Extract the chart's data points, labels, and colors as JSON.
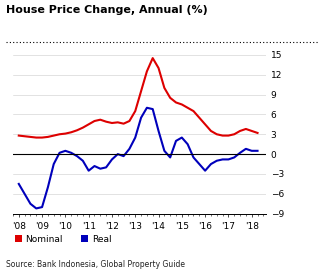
{
  "title": "House Price Change, Annual (%)",
  "source": "Source: Bank Indonesia, Global Property Guide",
  "legend_nominal": "Nominal",
  "legend_real": "Real",
  "nominal_color": "#dd0000",
  "real_color": "#0000bb",
  "background_color": "#ffffff",
  "ylim": [
    -9,
    15
  ],
  "yticks": [
    -9,
    -6,
    -3,
    0,
    3,
    6,
    9,
    12,
    15
  ],
  "x_labels": [
    "'08",
    "'09",
    "'10",
    "'11",
    "'12",
    "'13",
    "'14",
    "'15",
    "'16",
    "'17",
    "'18"
  ],
  "x_tick_positions": [
    2008,
    2009,
    2010,
    2011,
    2012,
    2013,
    2014,
    2015,
    2016,
    2017,
    2018
  ],
  "x_values": [
    2008.0,
    2008.25,
    2008.5,
    2008.75,
    2009.0,
    2009.25,
    2009.5,
    2009.75,
    2010.0,
    2010.25,
    2010.5,
    2010.75,
    2011.0,
    2011.25,
    2011.5,
    2011.75,
    2012.0,
    2012.25,
    2012.5,
    2012.75,
    2013.0,
    2013.25,
    2013.5,
    2013.75,
    2014.0,
    2014.25,
    2014.5,
    2014.75,
    2015.0,
    2015.25,
    2015.5,
    2015.75,
    2016.0,
    2016.25,
    2016.5,
    2016.75,
    2017.0,
    2017.25,
    2017.5,
    2017.75,
    2018.0,
    2018.25
  ],
  "nominal": [
    2.8,
    2.7,
    2.6,
    2.5,
    2.5,
    2.6,
    2.8,
    3.0,
    3.1,
    3.3,
    3.6,
    4.0,
    4.5,
    5.0,
    5.2,
    4.9,
    4.7,
    4.8,
    4.6,
    5.0,
    6.5,
    9.5,
    12.5,
    14.5,
    13.0,
    10.0,
    8.5,
    7.8,
    7.5,
    7.0,
    6.5,
    5.5,
    4.5,
    3.5,
    3.0,
    2.8,
    2.8,
    3.0,
    3.5,
    3.8,
    3.5,
    3.2
  ],
  "real": [
    -4.5,
    -6.0,
    -7.5,
    -8.2,
    -8.0,
    -5.0,
    -1.5,
    0.2,
    0.5,
    0.2,
    -0.3,
    -1.0,
    -2.5,
    -1.8,
    -2.2,
    -2.0,
    -0.8,
    0.0,
    -0.3,
    0.8,
    2.5,
    5.5,
    7.0,
    6.8,
    3.5,
    0.5,
    -0.5,
    2.0,
    2.5,
    1.5,
    -0.5,
    -1.5,
    -2.5,
    -1.5,
    -1.0,
    -0.8,
    -0.8,
    -0.5,
    0.2,
    0.8,
    0.5,
    0.5
  ]
}
